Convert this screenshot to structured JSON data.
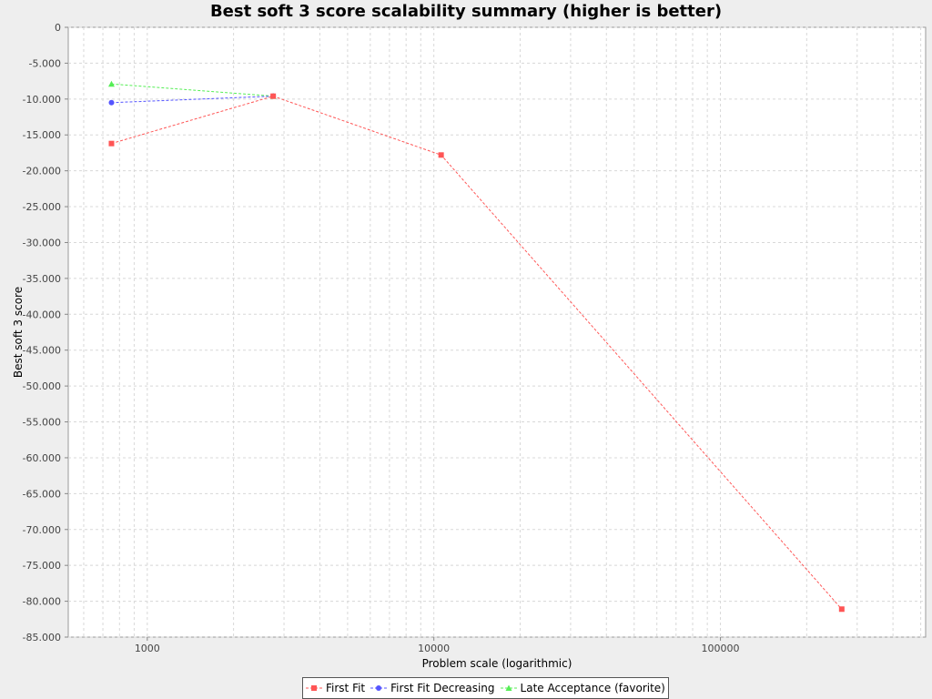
{
  "chart_data": {
    "type": "line",
    "title": "Best soft 3 score scalability summary (higher is better)",
    "xlabel": "Problem scale (logarithmic)",
    "ylabel": "Best soft 3 score",
    "x_scale": "log",
    "xlim": [
      530,
      520000
    ],
    "ylim": [
      -85000,
      0
    ],
    "x_ticks": [
      1000,
      10000,
      100000
    ],
    "x_tick_labels": [
      "1000",
      "10000",
      "100000"
    ],
    "y_ticks": [
      0,
      -5000,
      -10000,
      -15000,
      -20000,
      -25000,
      -30000,
      -35000,
      -40000,
      -45000,
      -50000,
      -55000,
      -60000,
      -65000,
      -70000,
      -75000,
      -80000,
      -85000
    ],
    "y_tick_labels": [
      "0",
      "-5.000",
      "-10.000",
      "-15.000",
      "-20.000",
      "-25.000",
      "-30.000",
      "-35.000",
      "-40.000",
      "-45.000",
      "-50.000",
      "-55.000",
      "-60.000",
      "-65.000",
      "-70.000",
      "-75.000",
      "-80.000",
      "-85.000"
    ],
    "grid": true,
    "legend_position": "bottom",
    "series": [
      {
        "name": "Late Acceptance (favorite)",
        "color": "#55ee55",
        "marker": "triangle",
        "x": [
          750,
          2750
        ],
        "y": [
          -7900,
          -9600
        ]
      },
      {
        "name": "First Fit Decreasing",
        "color": "#5555ff",
        "marker": "circle",
        "x": [
          750,
          2750
        ],
        "y": [
          -10500,
          -9600
        ]
      },
      {
        "name": "First Fit",
        "color": "#ff5555",
        "marker": "square",
        "x": [
          750,
          2750,
          10600,
          265000
        ],
        "y": [
          -16200,
          -9600,
          -17800,
          -81100
        ]
      }
    ],
    "legend_order": [
      2,
      1,
      0
    ]
  }
}
